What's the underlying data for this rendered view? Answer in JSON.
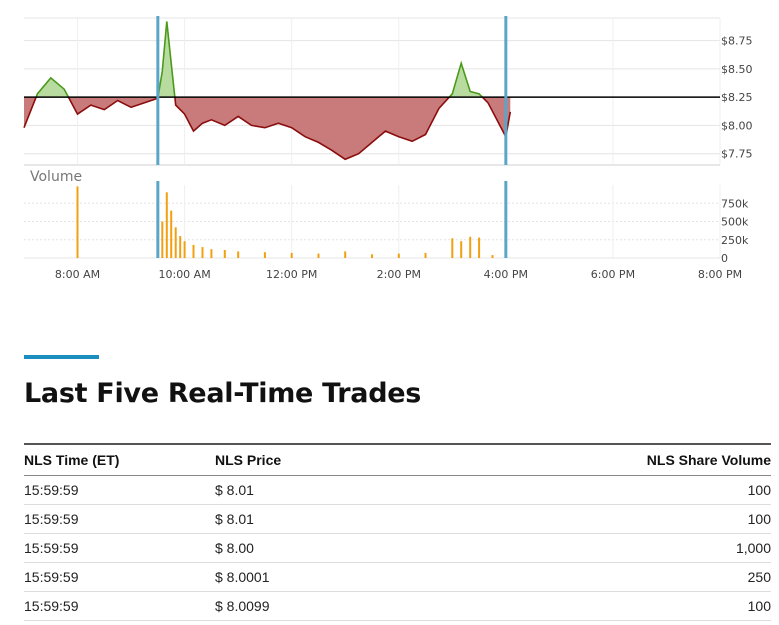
{
  "chart_data": [
    {
      "type": "area",
      "x_labels": [
        "8:00 AM",
        "10:00 AM",
        "12:00 PM",
        "2:00 PM",
        "4:00 PM",
        "6:00 PM",
        "8:00 PM"
      ],
      "y_ticks": [
        "$8.75",
        "$8.50",
        "$8.25",
        "$8.00",
        "$7.75"
      ],
      "ylim": [
        7.65,
        8.95
      ],
      "baseline": 8.25,
      "session_markers": [
        "9:30 AM",
        "4:00 PM"
      ],
      "series": [
        {
          "x": [
            "7:00",
            "7:15",
            "7:30",
            "7:45",
            "8:00",
            "8:15",
            "8:30",
            "8:45",
            "9:00",
            "9:15",
            "9:30",
            "9:35",
            "9:40",
            "9:45",
            "9:50",
            "10:00",
            "10:10",
            "10:20",
            "10:30",
            "10:45",
            "11:00",
            "11:15",
            "11:30",
            "11:45",
            "12:00",
            "12:15",
            "12:30",
            "12:45",
            "13:00",
            "13:15",
            "13:30",
            "13:45",
            "14:00",
            "14:15",
            "14:30",
            "14:45",
            "15:00",
            "15:10",
            "15:20",
            "15:30",
            "15:40",
            "15:50",
            "16:00",
            "16:05"
          ],
          "values": [
            7.98,
            8.28,
            8.42,
            8.32,
            8.1,
            8.18,
            8.14,
            8.22,
            8.16,
            8.2,
            8.24,
            8.48,
            8.92,
            8.55,
            8.18,
            8.1,
            7.95,
            8.02,
            8.05,
            8.0,
            8.08,
            8.0,
            7.98,
            8.02,
            7.98,
            7.9,
            7.85,
            7.78,
            7.7,
            7.75,
            7.85,
            7.95,
            7.9,
            7.86,
            7.92,
            8.15,
            8.28,
            8.55,
            8.3,
            8.28,
            8.2,
            8.05,
            7.9,
            8.12
          ]
        }
      ]
    },
    {
      "type": "bar",
      "title": "Volume",
      "y_ticks": [
        "750k",
        "500k",
        "250k",
        "0"
      ],
      "ylim": [
        0,
        1000000
      ],
      "series": [
        {
          "x": [
            "8:00",
            "9:30",
            "9:35",
            "9:40",
            "9:45",
            "9:50",
            "9:55",
            "10:00",
            "10:10",
            "10:20",
            "10:30",
            "10:45",
            "11:00",
            "11:30",
            "12:00",
            "12:30",
            "13:00",
            "13:30",
            "14:00",
            "14:30",
            "15:00",
            "15:10",
            "15:20",
            "15:30",
            "15:45",
            "16:00"
          ],
          "values": [
            980000,
            300000,
            500000,
            900000,
            650000,
            420000,
            300000,
            230000,
            180000,
            150000,
            120000,
            110000,
            90000,
            80000,
            70000,
            60000,
            90000,
            50000,
            60000,
            70000,
            270000,
            230000,
            290000,
            280000,
            40000,
            30000
          ]
        }
      ]
    }
  ],
  "colors": {
    "up_line": "#4a9a1a",
    "up_fill": "#b8dca0",
    "down_line": "#8b0d0d",
    "down_fill": "#c97b7b",
    "volume_bar": "#f2a010",
    "session_marker": "#5aa5c8",
    "grid": "#e4e4e4",
    "accent": "#1a8fbf"
  },
  "section": {
    "title": "Last Five Real-Time Trades"
  },
  "table": {
    "headers": [
      "NLS Time (ET)",
      "NLS Price",
      "NLS Share Volume"
    ],
    "rows": [
      [
        "15:59:59",
        "$ 8.01",
        "100"
      ],
      [
        "15:59:59",
        "$ 8.01",
        "100"
      ],
      [
        "15:59:59",
        "$ 8.00",
        "1,000"
      ],
      [
        "15:59:59",
        "$ 8.0001",
        "250"
      ],
      [
        "15:59:59",
        "$ 8.0099",
        "100"
      ]
    ]
  }
}
